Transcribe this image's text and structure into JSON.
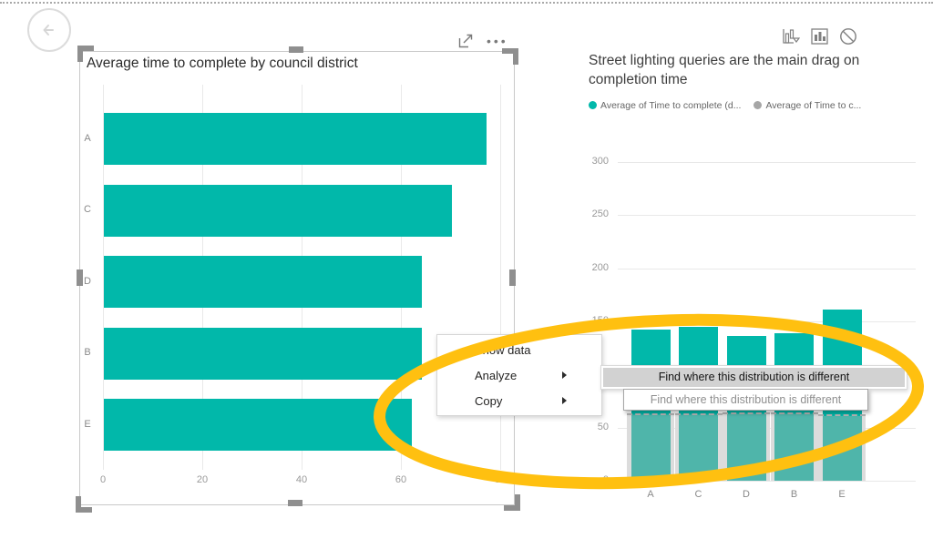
{
  "page": {
    "back_label": "back"
  },
  "left_visual": {
    "title": "Average time to complete by council district"
  },
  "right_visual": {
    "title": "Street lighting queries are the main drag on completion time",
    "legend": [
      {
        "label": "Average of Time to complete (d...",
        "color": "#01B8AA"
      },
      {
        "label": "Average of Time to c...",
        "color": "#a6a6a6"
      }
    ]
  },
  "context_menu": {
    "items": [
      {
        "label": "Show data",
        "has_submenu": false
      },
      {
        "label": "Analyze",
        "has_submenu": true
      },
      {
        "label": "Copy",
        "has_submenu": true
      }
    ]
  },
  "submenu_item": {
    "label": "Find where this distribution is different"
  },
  "tooltip": {
    "text": "Find where this distribution is different"
  },
  "annotation": {
    "shape": "ellipse",
    "color": "#FFC010"
  },
  "icons": {
    "left_header": [
      "focus-mode-icon",
      "more-options-icon"
    ],
    "right_header": [
      "analyze-bars-icon",
      "bar-chart-icon",
      "no-interaction-icon"
    ]
  },
  "chart_data": [
    {
      "type": "bar",
      "orientation": "horizontal",
      "title": "Average time to complete by council district",
      "categories": [
        "A",
        "C",
        "D",
        "B",
        "E"
      ],
      "values": [
        77,
        70,
        64,
        64,
        62
      ],
      "xlabel": "",
      "ylabel": "",
      "xlim": [
        0,
        80
      ],
      "xticks": [
        0,
        20,
        40,
        60,
        80
      ],
      "bar_color": "#01B8AA",
      "grid": true
    },
    {
      "type": "bar",
      "orientation": "vertical",
      "title": "Street lighting queries are the main drag on completion time",
      "categories": [
        "A",
        "C",
        "D",
        "B",
        "E"
      ],
      "series": [
        {
          "name": "Average of Time to complete (d...",
          "color": "#01B8AA",
          "values": [
            142,
            145,
            136,
            139,
            161
          ]
        },
        {
          "name": "Average of Time to c...",
          "color": "#dcdcdc",
          "style": "reference-overlay-dashed",
          "values": [
            62,
            62,
            63,
            63,
            61
          ]
        }
      ],
      "xlabel": "",
      "ylabel": "",
      "ylim": [
        0,
        300
      ],
      "yticks": [
        0,
        50,
        100,
        150,
        200,
        250,
        300
      ],
      "grid": true,
      "legend_position": "top"
    }
  ]
}
